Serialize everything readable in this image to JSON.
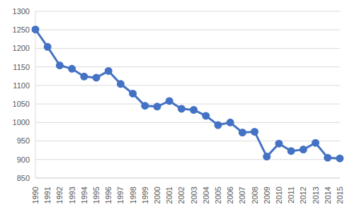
{
  "chart_data": {
    "type": "line",
    "categories": [
      "1990",
      "1991",
      "1992",
      "1993",
      "1994",
      "1995",
      "1996",
      "1997",
      "1998",
      "1999",
      "2000",
      "2001",
      "2002",
      "2003",
      "2004",
      "2005",
      "2006",
      "2007",
      "2008",
      "2009",
      "2010",
      "2011",
      "2012",
      "2013",
      "2014",
      "2015"
    ],
    "values": [
      1251,
      1204,
      1154,
      1145,
      1124,
      1121,
      1139,
      1104,
      1078,
      1045,
      1043,
      1058,
      1037,
      1034,
      1018,
      993,
      1000,
      973,
      975,
      908,
      943,
      923,
      927,
      945,
      905,
      903
    ],
    "color": "#4472c4",
    "marker": "circle",
    "line_style": "solid",
    "ylim": [
      850,
      1300
    ],
    "yticks": [
      850,
      900,
      950,
      1000,
      1050,
      1100,
      1150,
      1200,
      1250,
      1300
    ],
    "grid": true
  }
}
